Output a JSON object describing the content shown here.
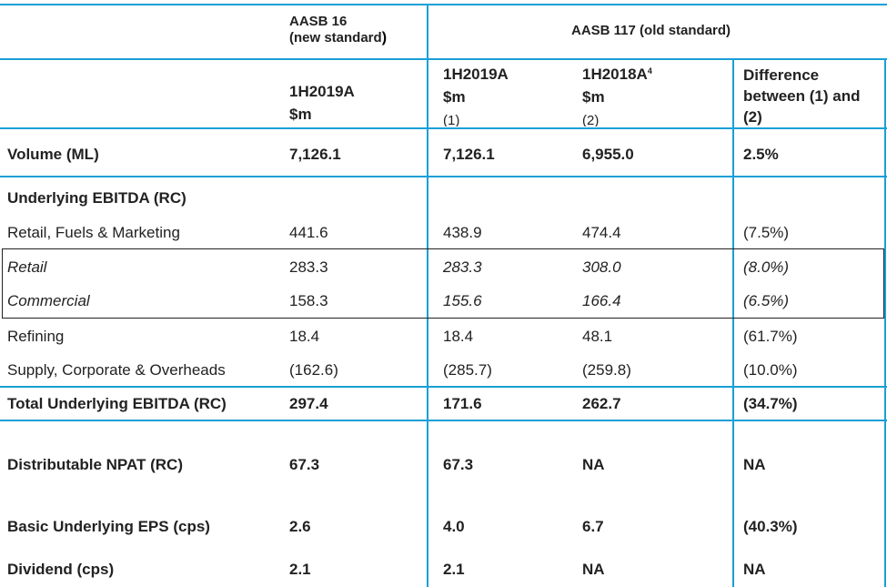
{
  "header": {
    "aasb16_line1": "AASB 16",
    "aasb16_line2": "(new standard",
    "aasb16_paren": ")",
    "aasb117": "AASB 117 (old standard)",
    "col1_period": "1H2019A",
    "col1_unit": "$m",
    "col2_period": "1H2019A",
    "col2_unit": "$m",
    "col2_ref": "(1)",
    "col3_period": "1H2018A",
    "col3_sup": "4",
    "col3_unit": "$m",
    "col3_ref": "(2)",
    "col4_line1": "Difference",
    "col4_line2": "between (1) and",
    "col4_line3": "(2)"
  },
  "rows": [
    {
      "label": "Volume (ML)",
      "c1": "7,126.1",
      "c2": "7,126.1",
      "c3": "6,955.0",
      "c4": "2.5%"
    },
    {
      "label": "Underlying EBITDA (RC)",
      "c1": "",
      "c2": "",
      "c3": "",
      "c4": ""
    },
    {
      "label": "Retail, Fuels & Marketing",
      "c1": "441.6",
      "c2": "438.9",
      "c3": "474.4",
      "c4": "(7.5%)"
    },
    {
      "label": "Retail",
      "c1": "283.3",
      "c2": "283.3",
      "c3": "308.0",
      "c4": "(8.0%)"
    },
    {
      "label": "Commercial",
      "c1": "158.3",
      "c2": "155.6",
      "c3": "166.4",
      "c4": "(6.5%)"
    },
    {
      "label": "Refining",
      "c1": "18.4",
      "c2": "18.4",
      "c3": "48.1",
      "c4": "(61.7%)"
    },
    {
      "label": "Supply, Corporate & Overheads",
      "c1": "(162.6)",
      "c2": "(285.7)",
      "c3": "(259.8)",
      "c4": "(10.0%)"
    },
    {
      "label": "Total Underlying EBITDA (RC)",
      "c1": "297.4",
      "c2": "171.6",
      "c3": "262.7",
      "c4": "(34.7%)"
    },
    {
      "label": "Distributable NPAT (RC)",
      "c1": "67.3",
      "c2": "67.3",
      "c3": "NA",
      "c4": "NA"
    },
    {
      "label": "Basic Underlying EPS (cps)",
      "c1": "2.6",
      "c2": "4.0",
      "c3": "6.7",
      "c4": "(40.3%)"
    },
    {
      "label": "Dividend (cps)",
      "c1": "2.1",
      "c2": "2.1",
      "c3": "NA",
      "c4": "NA"
    }
  ]
}
